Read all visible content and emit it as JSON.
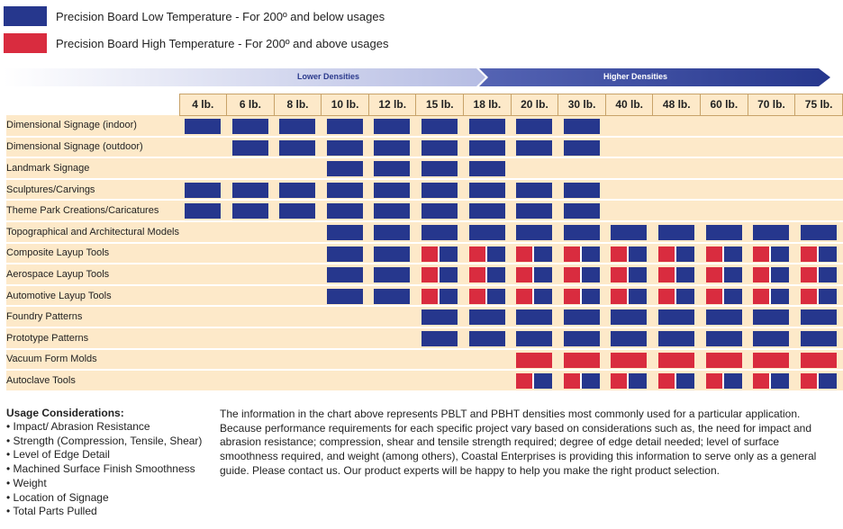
{
  "colors": {
    "blue": "#26378d",
    "red": "#d92c3f",
    "row_bg": "#fde9c9"
  },
  "legend": {
    "low": "Precision Board Low Temperature - For 200º and below usages",
    "high": "Precision Board High Temperature - For 200º and above usages"
  },
  "density_band": {
    "low_label": "Lower Densities",
    "high_label": "Higher Densities"
  },
  "densities": [
    "4 lb.",
    "6 lb.",
    "8 lb.",
    "10 lb.",
    "12 lb.",
    "15 lb.",
    "18 lb.",
    "20 lb.",
    "30 lb.",
    "40 lb.",
    "48 lb.",
    "60 lb.",
    "70 lb.",
    "75 lb."
  ],
  "rows": [
    {
      "name": "Dimensional Signage (indoor)",
      "cells": [
        "B",
        "B",
        "B",
        "B",
        "B",
        "B",
        "B",
        "B",
        "B",
        "",
        "",
        "",
        "",
        ""
      ]
    },
    {
      "name": "Dimensional Signage (outdoor)",
      "cells": [
        "",
        "B",
        "B",
        "B",
        "B",
        "B",
        "B",
        "B",
        "B",
        "",
        "",
        "",
        "",
        ""
      ]
    },
    {
      "name": "Landmark Signage",
      "cells": [
        "",
        "",
        "",
        "B",
        "B",
        "B",
        "B",
        "",
        "",
        "",
        "",
        "",
        "",
        ""
      ]
    },
    {
      "name": "Sculptures/Carvings",
      "cells": [
        "B",
        "B",
        "B",
        "B",
        "B",
        "B",
        "B",
        "B",
        "B",
        "",
        "",
        "",
        "",
        ""
      ]
    },
    {
      "name": "Theme Park Creations/Caricatures",
      "cells": [
        "B",
        "B",
        "B",
        "B",
        "B",
        "B",
        "B",
        "B",
        "B",
        "",
        "",
        "",
        "",
        ""
      ]
    },
    {
      "name": "Topographical and Architectural Models",
      "cells": [
        "",
        "",
        "",
        "B",
        "B",
        "B",
        "B",
        "B",
        "B",
        "B",
        "B",
        "B",
        "B",
        "B"
      ]
    },
    {
      "name": "Composite Layup Tools",
      "cells": [
        "",
        "",
        "",
        "B",
        "B",
        "RB",
        "RB",
        "RB",
        "RB",
        "RB",
        "RB",
        "RB",
        "RB",
        "RB"
      ]
    },
    {
      "name": "Aerospace Layup Tools",
      "cells": [
        "",
        "",
        "",
        "B",
        "B",
        "RB",
        "RB",
        "RB",
        "RB",
        "RB",
        "RB",
        "RB",
        "RB",
        "RB"
      ]
    },
    {
      "name": "Automotive Layup Tools",
      "cells": [
        "",
        "",
        "",
        "B",
        "B",
        "RB",
        "RB",
        "RB",
        "RB",
        "RB",
        "RB",
        "RB",
        "RB",
        "RB"
      ]
    },
    {
      "name": "Foundry Patterns",
      "cells": [
        "",
        "",
        "",
        "",
        "",
        "B",
        "B",
        "B",
        "B",
        "B",
        "B",
        "B",
        "B",
        "B"
      ]
    },
    {
      "name": "Prototype Patterns",
      "cells": [
        "",
        "",
        "",
        "",
        "",
        "B",
        "B",
        "B",
        "B",
        "B",
        "B",
        "B",
        "B",
        "B"
      ]
    },
    {
      "name": "Vacuum Form Molds",
      "cells": [
        "",
        "",
        "",
        "",
        "",
        "",
        "",
        "R",
        "R",
        "R",
        "R",
        "R",
        "R",
        "R"
      ]
    },
    {
      "name": "Autoclave Tools",
      "cells": [
        "",
        "",
        "",
        "",
        "",
        "",
        "",
        "RB",
        "RB",
        "RB",
        "RB",
        "RB",
        "RB",
        "RB"
      ]
    }
  ],
  "usage": {
    "title": "Usage Considerations:",
    "items": [
      "• Impact/ Abrasion Resistance",
      "• Strength (Compression, Tensile, Shear)",
      "• Level of Edge Detail",
      "• Machined Surface Finish Smoothness",
      "• Weight",
      "• Location of Signage",
      "• Total Parts Pulled"
    ]
  },
  "paragraph": "The information in the chart above represents PBLT and PBHT densities most commonly used for a particular application. Because performance requirements for each specific project vary based on considerations such as, the need for impact and abrasion resistance; compression, shear and tensile strength required; degree of edge detail needed; level of surface smoothness required, and weight (among others), Coastal Enterprises is providing this information to serve only as a general guide. Please contact us. Our product experts will be happy to help you make the right product selection."
}
